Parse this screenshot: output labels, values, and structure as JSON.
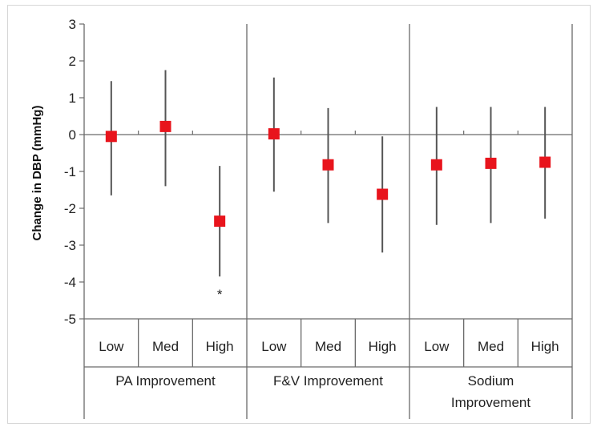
{
  "chart_data": {
    "type": "scatter",
    "title": "",
    "ylabel": "Change in DBP (mmHg)",
    "xlabel": "",
    "ylim": [
      -5,
      3
    ],
    "yticks": [
      3,
      2,
      1,
      0,
      -1,
      -2,
      -3,
      -4,
      -5
    ],
    "groups": [
      {
        "name": "PA Improvement",
        "name_lines": [
          "PA Improvement"
        ]
      },
      {
        "name": "F&V Improvement",
        "name_lines": [
          "F&V Improvement"
        ]
      },
      {
        "name": "Sodium Improvement",
        "name_lines": [
          "Sodium",
          "Improvement"
        ]
      }
    ],
    "levels": [
      "Low",
      "Med",
      "High"
    ],
    "points": [
      {
        "group": 0,
        "level": "Low",
        "value": -0.05,
        "lower": -1.65,
        "upper": 1.45
      },
      {
        "group": 0,
        "level": "Med",
        "value": 0.22,
        "lower": -1.4,
        "upper": 1.75
      },
      {
        "group": 0,
        "level": "High",
        "value": -2.35,
        "lower": -3.85,
        "upper": -0.85,
        "annotation": "*"
      },
      {
        "group": 1,
        "level": "Low",
        "value": 0.02,
        "lower": -1.55,
        "upper": 1.55
      },
      {
        "group": 1,
        "level": "Med",
        "value": -0.82,
        "lower": -2.4,
        "upper": 0.72
      },
      {
        "group": 1,
        "level": "High",
        "value": -1.62,
        "lower": -3.2,
        "upper": -0.05
      },
      {
        "group": 2,
        "level": "Low",
        "value": -0.82,
        "lower": -2.45,
        "upper": 0.75
      },
      {
        "group": 2,
        "level": "Med",
        "value": -0.78,
        "lower": -2.4,
        "upper": 0.75
      },
      {
        "group": 2,
        "level": "High",
        "value": -0.75,
        "lower": -2.28,
        "upper": 0.75
      }
    ],
    "marker_color": "#e8141c",
    "errorbar_color": "#555555",
    "axis_color": "#6a6a6a"
  }
}
